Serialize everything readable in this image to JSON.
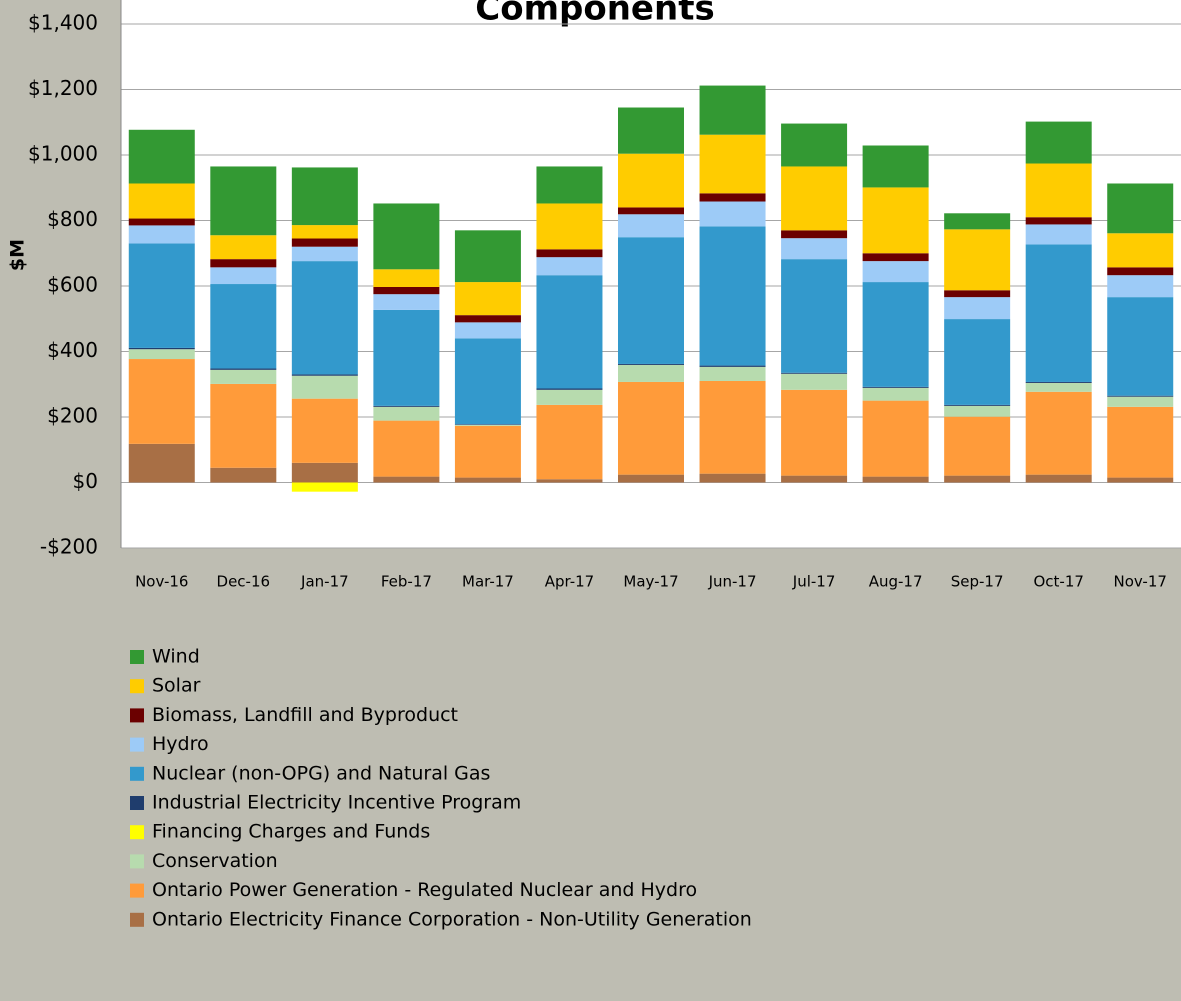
{
  "chart_data": {
    "type": "stacked_bar",
    "title": "Components",
    "y_label": "$M",
    "categories": [
      "Nov-16",
      "Dec-16",
      "Jan-17",
      "Feb-17",
      "Mar-17",
      "Apr-17",
      "May-17",
      "Jun-17",
      "Jul-17",
      "Aug-17",
      "Sep-17",
      "Oct-17",
      "Nov-17"
    ],
    "series": [
      {
        "name": "Ontario Electricity Finance Corporation - Non-Utility Generation",
        "color": "#a86f45",
        "values": [
          118,
          45,
          60,
          18,
          15,
          10,
          24,
          27,
          21,
          18,
          21,
          24,
          15
        ]
      },
      {
        "name": "Ontario Power Generation - Regulated Nuclear and Hydro",
        "color": "#ff9b3a",
        "values": [
          259,
          256,
          196,
          171,
          158,
          227,
          283,
          283,
          262,
          232,
          180,
          253,
          216
        ]
      },
      {
        "name": "Conservation",
        "color": "#b7dbae",
        "values": [
          30,
          43,
          70,
          42,
          3,
          46,
          52,
          43,
          49,
          39,
          33,
          27,
          31
        ]
      },
      {
        "name": "Financing Charges and Funds",
        "color": "#ffff00",
        "values": [
          0,
          0,
          -28,
          0,
          0,
          0,
          0,
          0,
          0,
          0,
          0,
          0,
          0
        ]
      },
      {
        "name": "Industrial Electricity Incentive Program",
        "color": "#1f3d6d",
        "values": [
          4,
          4,
          4,
          3,
          2,
          4,
          3,
          4,
          3,
          3,
          3,
          3,
          3
        ]
      },
      {
        "name": "Nuclear (non-OPG) and Natural Gas",
        "color": "#3399cc",
        "values": [
          319,
          258,
          346,
          293,
          262,
          346,
          387,
          425,
          347,
          320,
          262,
          420,
          301
        ]
      },
      {
        "name": "Hydro",
        "color": "#9dcbf7",
        "values": [
          55,
          51,
          44,
          48,
          49,
          55,
          70,
          76,
          64,
          64,
          67,
          61,
          67
        ]
      },
      {
        "name": "Biomass, Landfill and Byproduct",
        "color": "#6b0000",
        "values": [
          21,
          25,
          25,
          22,
          22,
          24,
          21,
          25,
          24,
          24,
          21,
          22,
          24
        ]
      },
      {
        "name": "Solar",
        "color": "#ffcc00",
        "values": [
          107,
          73,
          41,
          54,
          101,
          140,
          164,
          179,
          195,
          201,
          186,
          164,
          104
        ]
      },
      {
        "name": "Wind",
        "color": "#339933",
        "values": [
          164,
          210,
          176,
          201,
          158,
          113,
          141,
          150,
          131,
          128,
          49,
          128,
          152
        ]
      }
    ],
    "ylim": [
      -200,
      1400
    ],
    "yticks": [
      {
        "value": -200,
        "label": "-$200"
      },
      {
        "value": 0,
        "label": "$0"
      },
      {
        "value": 200,
        "label": "$200"
      },
      {
        "value": 400,
        "label": "$400"
      },
      {
        "value": 600,
        "label": "$600"
      },
      {
        "value": 800,
        "label": "$800"
      },
      {
        "value": 1000,
        "label": "$1,000"
      },
      {
        "value": 1200,
        "label": "$1,200"
      },
      {
        "value": 1400,
        "label": "$1,400"
      }
    ],
    "grid": true
  }
}
